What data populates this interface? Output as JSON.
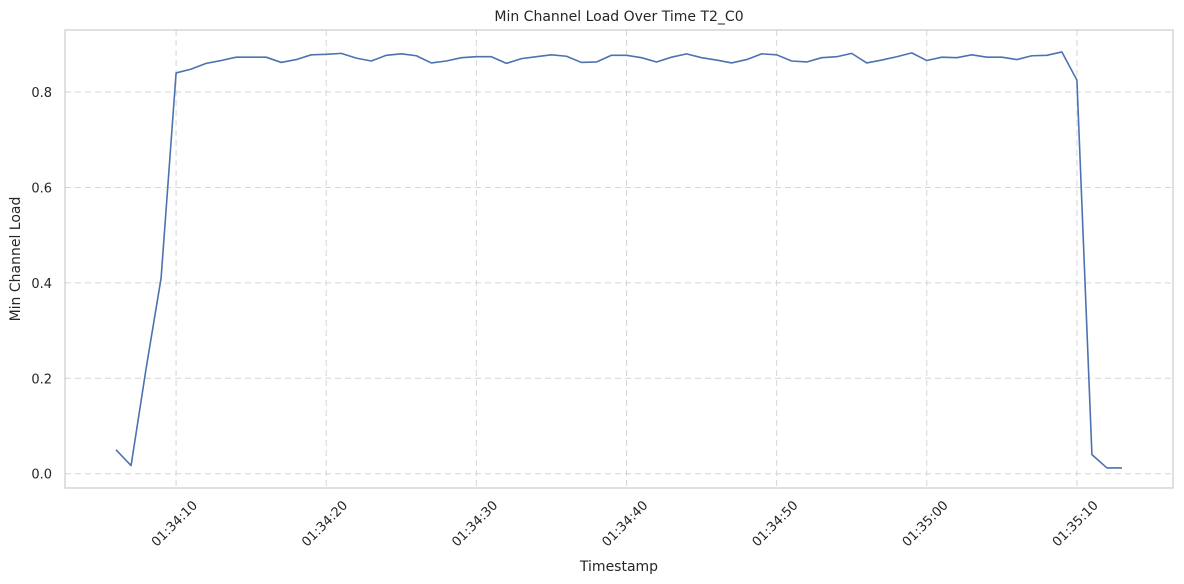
{
  "chart_data": {
    "type": "line",
    "title": "Min Channel Load Over Time T2_C0",
    "xlabel": "Timestamp",
    "ylabel": "Min Channel Load",
    "x_ticks": [
      {
        "label": "01:34:10",
        "t": 10
      },
      {
        "label": "01:34:20",
        "t": 20
      },
      {
        "label": "01:34:30",
        "t": 30
      },
      {
        "label": "01:34:40",
        "t": 40
      },
      {
        "label": "01:34:50",
        "t": 50
      },
      {
        "label": "01:35:00",
        "t": 60
      },
      {
        "label": "01:35:10",
        "t": 70
      }
    ],
    "y_ticks": [
      {
        "label": "0.0",
        "v": 0.0
      },
      {
        "label": "0.2",
        "v": 0.2
      },
      {
        "label": "0.4",
        "v": 0.4
      },
      {
        "label": "0.6",
        "v": 0.6
      },
      {
        "label": "0.8",
        "v": 0.8
      }
    ],
    "xlim": [
      2.6,
      76.4
    ],
    "ylim": [
      -0.03,
      0.93
    ],
    "grid": true,
    "series": [
      {
        "color": "#4c72b0",
        "x": [
          6,
          7,
          8,
          9,
          10,
          11,
          12,
          13,
          14,
          15,
          16,
          17,
          18,
          19,
          20,
          21,
          22,
          23,
          24,
          25,
          26,
          27,
          28,
          29,
          30,
          31,
          32,
          33,
          34,
          35,
          36,
          37,
          38,
          39,
          40,
          41,
          42,
          43,
          44,
          45,
          46,
          47,
          48,
          49,
          50,
          51,
          52,
          53,
          54,
          55,
          56,
          57,
          58,
          59,
          60,
          61,
          62,
          63,
          64,
          65,
          66,
          67,
          68,
          69,
          70,
          71,
          72,
          73
        ],
        "y": [
          0.05,
          0.017,
          0.22,
          0.41,
          0.84,
          0.848,
          0.86,
          0.866,
          0.873,
          0.873,
          0.873,
          0.862,
          0.868,
          0.878,
          0.879,
          0.881,
          0.871,
          0.865,
          0.877,
          0.88,
          0.876,
          0.861,
          0.865,
          0.872,
          0.874,
          0.874,
          0.86,
          0.87,
          0.874,
          0.878,
          0.875,
          0.862,
          0.863,
          0.877,
          0.877,
          0.872,
          0.863,
          0.873,
          0.88,
          0.872,
          0.867,
          0.861,
          0.868,
          0.88,
          0.878,
          0.865,
          0.863,
          0.872,
          0.874,
          0.881,
          0.861,
          0.867,
          0.874,
          0.882,
          0.866,
          0.873,
          0.872,
          0.878,
          0.873,
          0.873,
          0.868,
          0.876,
          0.877,
          0.884,
          0.825,
          0.04,
          0.012,
          0.012
        ]
      }
    ]
  }
}
